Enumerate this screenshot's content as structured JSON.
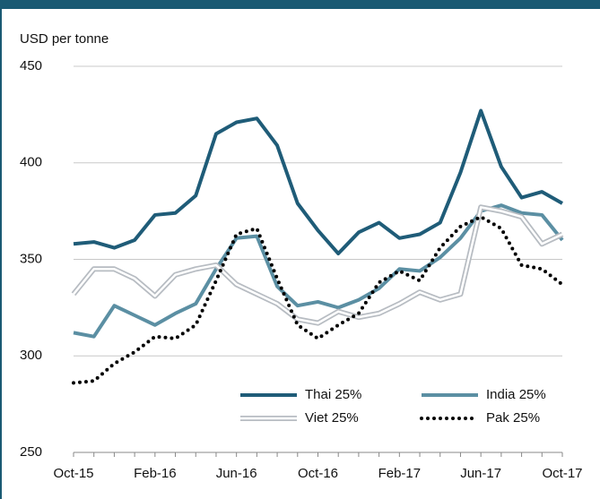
{
  "chart_data": {
    "type": "line",
    "y_label": "USD per tonne",
    "categories": [
      "Oct-15",
      null,
      null,
      null,
      "Feb-16",
      null,
      null,
      null,
      "Jun-16",
      null,
      null,
      null,
      "Oct-16",
      null,
      null,
      null,
      "Feb-17",
      null,
      null,
      null,
      "Jun-17",
      null,
      null,
      null,
      "Oct-17"
    ],
    "series": [
      {
        "name": "Thai 25%",
        "color": "#1f5c78",
        "style": "solid",
        "values": [
          358,
          359,
          356,
          360,
          373,
          374,
          383,
          415,
          421,
          423,
          409,
          379,
          365,
          353,
          364,
          369,
          361,
          363,
          369,
          395,
          427,
          398,
          382,
          385,
          379
        ]
      },
      {
        "name": "India 25%",
        "color": "#5b8fa3",
        "style": "solid",
        "values": [
          312,
          310,
          326,
          321,
          316,
          322,
          327,
          345,
          361,
          362,
          336,
          326,
          328,
          325,
          329,
          335,
          345,
          344,
          351,
          361,
          375,
          378,
          374,
          373,
          360
        ]
      },
      {
        "name": "Viet 25%",
        "color": "#b7bcc2",
        "style": "double",
        "values": [
          332,
          345,
          345,
          340,
          331,
          342,
          345,
          347,
          337,
          332,
          327,
          319,
          317,
          323,
          320,
          322,
          327,
          333,
          329,
          332,
          377,
          375,
          372,
          358,
          363
        ]
      },
      {
        "name": "Pak 25%",
        "color": "#000000",
        "style": "dotted",
        "values": [
          286,
          287,
          296,
          302,
          310,
          309,
          316,
          339,
          363,
          366,
          340,
          316,
          309,
          316,
          322,
          338,
          344,
          339,
          356,
          367,
          372,
          366,
          347,
          345,
          337
        ]
      }
    ],
    "ylim": [
      250,
      450
    ],
    "yticks": [
      250,
      300,
      350,
      400,
      450
    ],
    "grid": true
  }
}
